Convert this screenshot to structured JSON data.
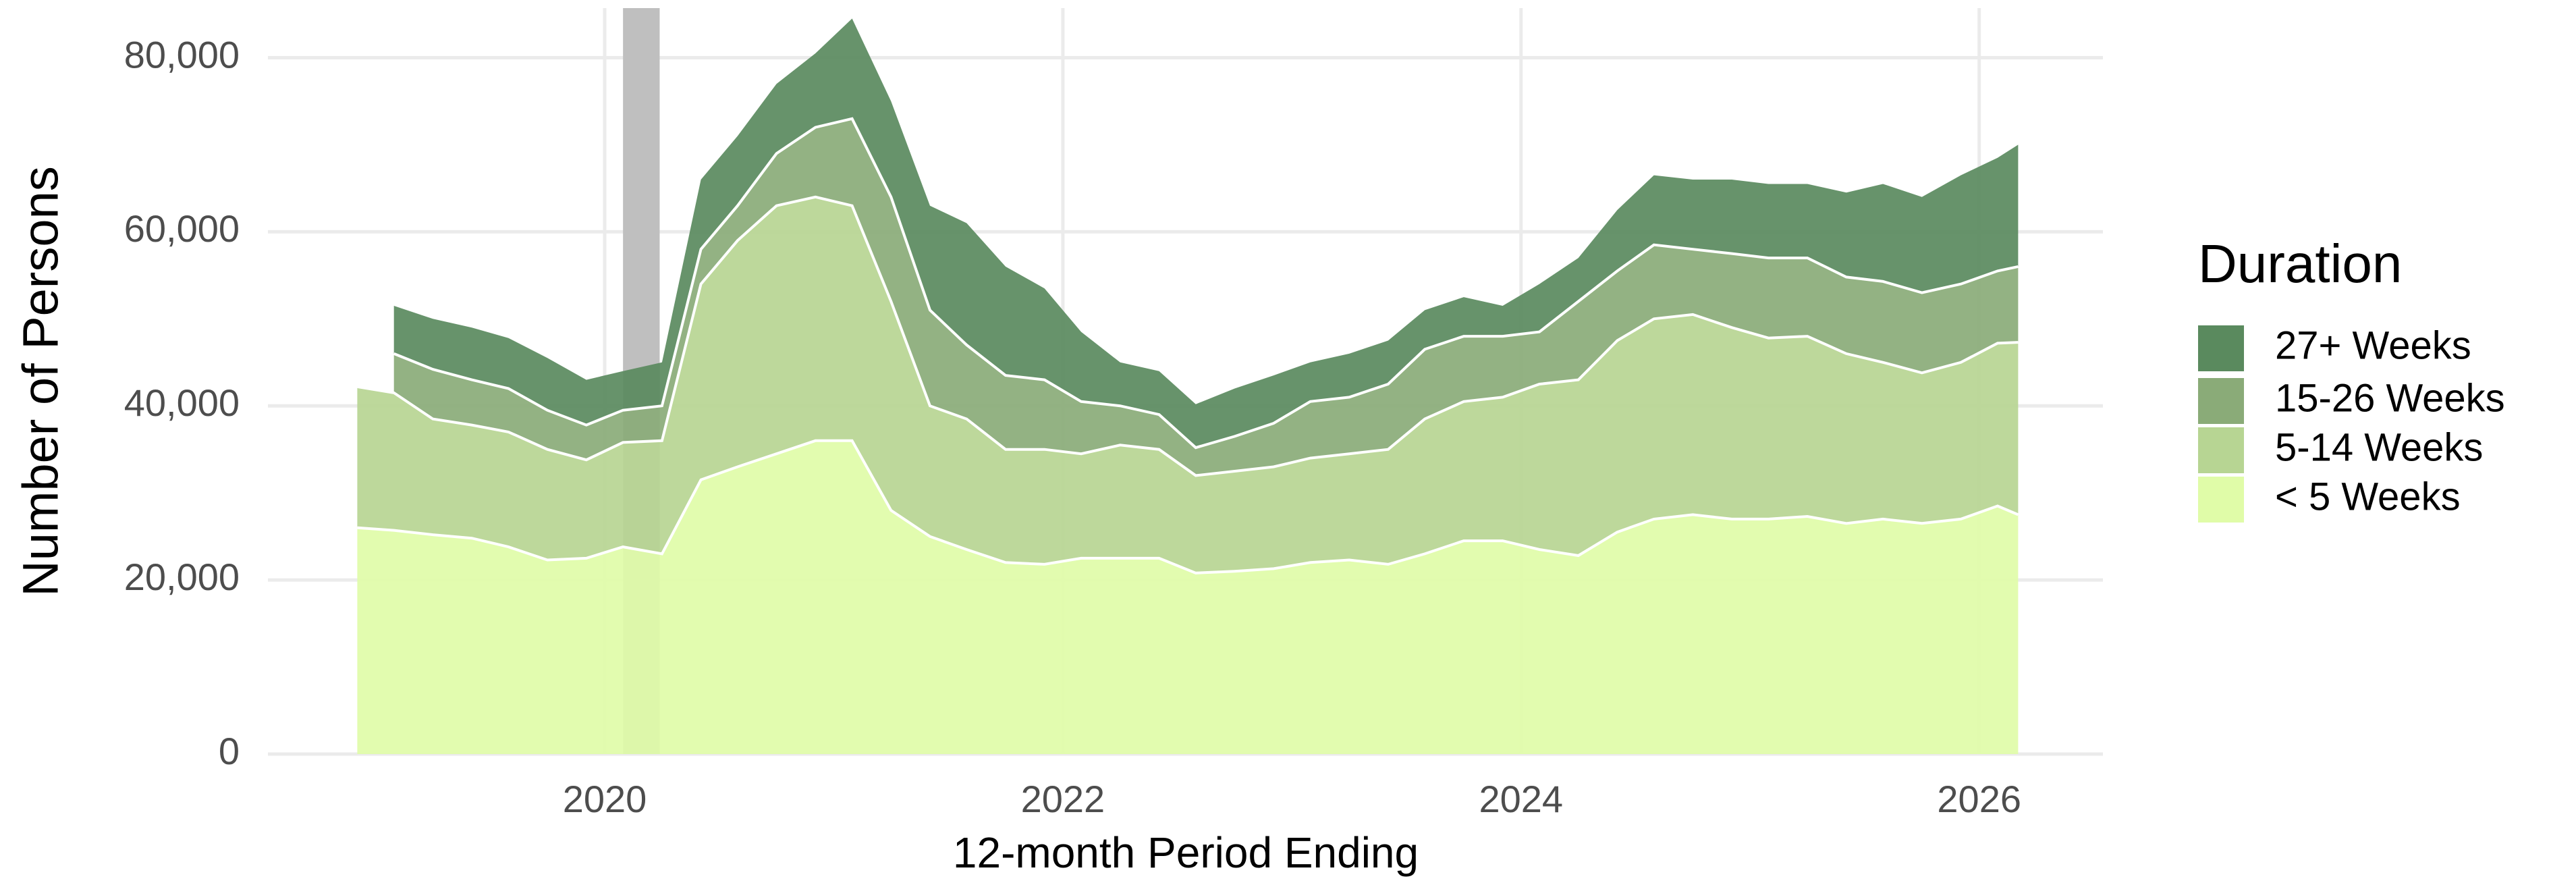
{
  "chart_data": {
    "type": "area",
    "stacked": true,
    "x_label": "12-month Period Ending",
    "y_label": "Number of Persons",
    "legend_title": "Duration",
    "legend_position": "right",
    "grid": true,
    "xlim": [
      2018.53,
      2026.54
    ],
    "xticks": [
      2020,
      2022,
      2024,
      2026
    ],
    "ylim": [
      0,
      85700
    ],
    "yticks": [
      0,
      {
        "value": 20000,
        "label": "20,000"
      },
      {
        "value": 40000,
        "label": "40,000"
      },
      {
        "value": 60000,
        "label": "60,000"
      },
      {
        "value": 80000,
        "label": "80,000"
      }
    ],
    "shaded_period": {
      "x": [
        2020.08,
        2020.24
      ],
      "color": "#bfbfbf"
    },
    "x": [
      2018.92,
      2019.08,
      2019.25,
      2019.42,
      2019.58,
      2019.75,
      2019.92,
      2020.08,
      2020.25,
      2020.42,
      2020.58,
      2020.75,
      2020.92,
      2021.08,
      2021.25,
      2021.42,
      2021.58,
      2021.75,
      2021.92,
      2022.08,
      2022.25,
      2022.42,
      2022.58,
      2022.75,
      2022.92,
      2023.08,
      2023.25,
      2023.42,
      2023.58,
      2023.75,
      2023.92,
      2024.08,
      2024.25,
      2024.42,
      2024.58,
      2024.75,
      2024.92,
      2025.08,
      2025.25,
      2025.42,
      2025.58,
      2025.75,
      2025.92,
      2026.08,
      2026.17
    ],
    "series": [
      {
        "name": "27+ Weeks",
        "color": "#5a8a5e",
        "values": [
          null,
          5500,
          5800,
          6000,
          5800,
          6000,
          5200,
          4500,
          5000,
          8000,
          8000,
          8000,
          8500,
          11500,
          11000,
          12000,
          14000,
          12500,
          10500,
          8000,
          5000,
          5000,
          5000,
          5500,
          5500,
          4500,
          5000,
          5000,
          4500,
          4500,
          3500,
          5500,
          5000,
          7000,
          8000,
          8000,
          8500,
          8500,
          8500,
          9700,
          11200,
          11000,
          12500,
          13000,
          14000
        ]
      },
      {
        "name": "15-26 Weeks",
        "color": "#8aab78",
        "values": [
          null,
          4500,
          5700,
          5200,
          5000,
          4500,
          4000,
          3700,
          4000,
          4000,
          4000,
          6000,
          8000,
          10000,
          12000,
          11000,
          8500,
          8500,
          8000,
          6000,
          4500,
          4000,
          3200,
          4000,
          5000,
          6500,
          6500,
          7500,
          8000,
          7500,
          7000,
          6000,
          9000,
          8000,
          8500,
          7500,
          8500,
          9200,
          9000,
          8800,
          9300,
          9200,
          9000,
          8300,
          8700
        ]
      },
      {
        "name": "5-14 Weeks",
        "color": "#b7d593",
        "values": [
          16200,
          15800,
          13300,
          13000,
          13200,
          12700,
          11300,
          12000,
          13000,
          22500,
          26000,
          28500,
          28000,
          27000,
          24000,
          15000,
          15000,
          13000,
          13200,
          12000,
          13000,
          12500,
          11200,
          11500,
          11700,
          12000,
          12200,
          13200,
          15500,
          16000,
          16500,
          19000,
          20200,
          22000,
          23000,
          23000,
          22000,
          20800,
          20700,
          19500,
          18000,
          17300,
          18000,
          18700,
          19800
        ]
      },
      {
        "name": "< 5 Weeks",
        "color": "#e0fca8",
        "values": [
          26000,
          25700,
          25200,
          24800,
          23800,
          22300,
          22500,
          23800,
          23000,
          31500,
          33000,
          34500,
          36000,
          36000,
          28000,
          25000,
          23500,
          22000,
          21800,
          22500,
          22500,
          22500,
          20800,
          21000,
          21300,
          22000,
          22300,
          21800,
          23000,
          24500,
          24500,
          23500,
          22800,
          25500,
          27000,
          27500,
          27000,
          27000,
          27300,
          26500,
          27000,
          26500,
          27000,
          28500,
          27500
        ]
      }
    ]
  }
}
